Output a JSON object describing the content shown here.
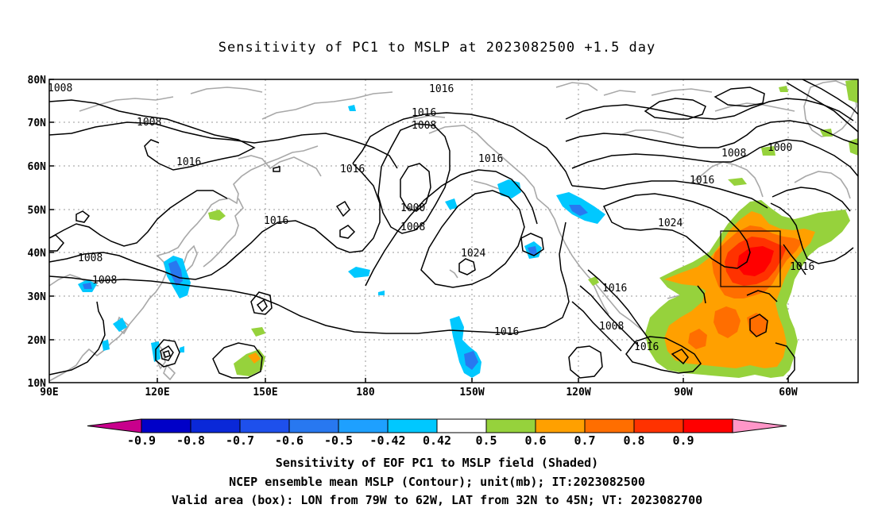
{
  "title": "Sensitivity of PC1 to MSLP at 2023082500 +1.5 day",
  "axes": {
    "lat_labels": [
      "80N",
      "70N",
      "60N",
      "50N",
      "40N",
      "30N",
      "20N",
      "10N"
    ],
    "lon_labels": [
      "90E",
      "120E",
      "150E",
      "180",
      "150W",
      "120W",
      "90W",
      "60W"
    ]
  },
  "contour_labels": [
    "1008",
    "1008",
    "1016",
    "1016",
    "1016",
    "1008",
    "1016",
    "1016",
    "1000",
    "1008",
    "1016",
    "1008",
    "1000",
    "1016",
    "1024",
    "1024",
    "1008",
    "1008",
    "1016",
    "1016",
    "1016",
    "1008",
    "1016",
    "1016"
  ],
  "colorbar": {
    "labels": [
      "-0.9",
      "-0.8",
      "-0.7",
      "-0.6",
      "-0.5",
      "-0.42",
      "0.42",
      "0.5",
      "0.6",
      "0.7",
      "0.8",
      "0.9"
    ],
    "colors": [
      "#c8008c",
      "#0000c8",
      "#0a28d8",
      "#1e50ec",
      "#2878f0",
      "#1ea0ff",
      "#00c8ff",
      "#ffffff",
      "#96d23c",
      "#ffa000",
      "#ff6e00",
      "#ff3200",
      "#ff0000",
      "#ff96c8"
    ]
  },
  "valid_box": {
    "lon_min": -79,
    "lon_max": -62,
    "lat_min": 32,
    "lat_max": 45
  },
  "captions": {
    "line1": "Sensitivity of EOF PC1 to MSLP field (Shaded)",
    "line2": "NCEP ensemble mean MSLP (Contour); unit(mb); IT:2023082500",
    "line3": "Valid area (box): LON from 79W to 62W, LAT from 32N to 45N; VT: 2023082700"
  }
}
